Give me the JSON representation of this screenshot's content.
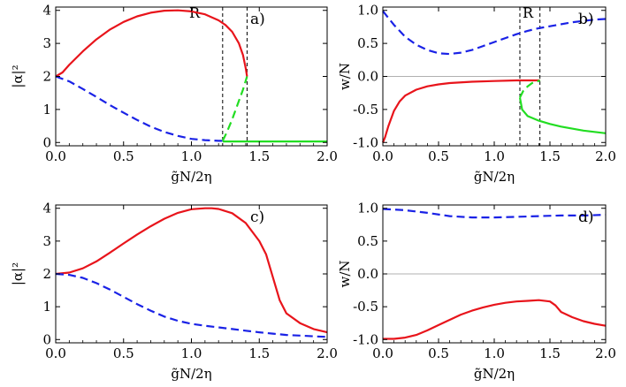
{
  "chart_data": [
    {
      "type": "line",
      "panel_label": "a)",
      "xlabel": "g̃N/2η",
      "ylabel": "|α|²",
      "xlim": [
        0,
        2
      ],
      "ylim": [
        -0.1,
        4.1
      ],
      "xticks": [
        "0.0",
        "0.5",
        "1.0",
        "1.5",
        "2.0"
      ],
      "yticks": [
        "0",
        "1",
        "2",
        "3",
        "4"
      ],
      "zero_line": false,
      "region": {
        "label": "R",
        "x_start": 1.23,
        "x_end": 1.41
      },
      "series": [
        {
          "name": "upper branch (red)",
          "color": "#e8141b",
          "dash": "solid",
          "x": [
            0.0,
            0.05,
            0.1,
            0.2,
            0.3,
            0.4,
            0.5,
            0.6,
            0.7,
            0.8,
            0.9,
            1.0,
            1.1,
            1.2,
            1.25,
            1.3,
            1.35,
            1.38,
            1.4,
            1.41
          ],
          "y": [
            2.0,
            2.12,
            2.35,
            2.76,
            3.12,
            3.42,
            3.65,
            3.82,
            3.93,
            3.99,
            4.0,
            3.97,
            3.88,
            3.7,
            3.56,
            3.35,
            3.0,
            2.65,
            2.25,
            2.0
          ]
        },
        {
          "name": "lower branch (blue)",
          "color": "#1a22e6",
          "dash": "dashed",
          "x": [
            0.0,
            0.1,
            0.2,
            0.3,
            0.4,
            0.5,
            0.6,
            0.7,
            0.8,
            0.9,
            1.0,
            1.1,
            1.2,
            1.23
          ],
          "y": [
            2.0,
            1.85,
            1.62,
            1.38,
            1.13,
            0.9,
            0.68,
            0.48,
            0.32,
            0.2,
            0.11,
            0.07,
            0.05,
            0.05
          ]
        },
        {
          "name": "unstable branch (green)",
          "color": "#22dd22",
          "dash": "dashed",
          "x": [
            1.23,
            1.26,
            1.3,
            1.34,
            1.38,
            1.41
          ],
          "y": [
            0.05,
            0.3,
            0.7,
            1.15,
            1.6,
            2.0
          ]
        },
        {
          "name": "trivial branch (green)",
          "color": "#22dd22",
          "dash": "solid",
          "x": [
            1.23,
            1.5,
            1.75,
            2.0
          ],
          "y": [
            0.03,
            0.03,
            0.03,
            0.03
          ]
        }
      ]
    },
    {
      "type": "line",
      "panel_label": "b)",
      "xlabel": "g̃N/2η",
      "ylabel": "w/N",
      "xlim": [
        0,
        2
      ],
      "ylim": [
        -1.05,
        1.05
      ],
      "xticks": [
        "0.0",
        "0.5",
        "1.0",
        "1.5",
        "2.0"
      ],
      "yticks": [
        "-1.0",
        "-0.5",
        "0.0",
        "0.5",
        "1.0"
      ],
      "zero_line": true,
      "region": {
        "label": "R",
        "x_start": 1.23,
        "x_end": 1.41
      },
      "series": [
        {
          "name": "blue dashed",
          "color": "#1a22e6",
          "dash": "dashed",
          "x": [
            0.0,
            0.1,
            0.2,
            0.3,
            0.4,
            0.5,
            0.6,
            0.7,
            0.8,
            0.9,
            1.0,
            1.1,
            1.2,
            1.3,
            1.4,
            1.5,
            1.6,
            1.7,
            1.8,
            1.9,
            2.0
          ],
          "y": [
            0.99,
            0.78,
            0.6,
            0.48,
            0.4,
            0.35,
            0.34,
            0.36,
            0.4,
            0.46,
            0.52,
            0.58,
            0.64,
            0.69,
            0.73,
            0.76,
            0.79,
            0.82,
            0.84,
            0.86,
            0.87
          ]
        },
        {
          "name": "red solid",
          "color": "#e8141b",
          "dash": "solid",
          "x": [
            0.0,
            0.02,
            0.05,
            0.1,
            0.15,
            0.2,
            0.3,
            0.4,
            0.5,
            0.6,
            0.8,
            1.0,
            1.2,
            1.41
          ],
          "y": [
            -1.0,
            -0.92,
            -0.75,
            -0.52,
            -0.38,
            -0.29,
            -0.2,
            -0.15,
            -0.12,
            -0.1,
            -0.08,
            -0.07,
            -0.06,
            -0.06
          ]
        },
        {
          "name": "green dashed",
          "color": "#22dd22",
          "dash": "dashed",
          "x": [
            1.23,
            1.26,
            1.3,
            1.34,
            1.38,
            1.41
          ],
          "y": [
            -0.32,
            -0.22,
            -0.15,
            -0.1,
            -0.08,
            -0.06
          ]
        },
        {
          "name": "green solid",
          "color": "#22dd22",
          "dash": "solid",
          "x": [
            1.23,
            1.25,
            1.3,
            1.4,
            1.5,
            1.6,
            1.7,
            1.8,
            1.9,
            2.0
          ],
          "y": [
            -0.32,
            -0.5,
            -0.6,
            -0.67,
            -0.72,
            -0.76,
            -0.79,
            -0.82,
            -0.84,
            -0.86
          ]
        }
      ]
    },
    {
      "type": "line",
      "panel_label": "c)",
      "xlabel": "g̃N/2η",
      "ylabel": "|α|²",
      "xlim": [
        0,
        2
      ],
      "ylim": [
        -0.1,
        4.1
      ],
      "xticks": [
        "0.0",
        "0.5",
        "1.0",
        "1.5",
        "2.0"
      ],
      "yticks": [
        "0",
        "1",
        "2",
        "3",
        "4"
      ],
      "zero_line": false,
      "series": [
        {
          "name": "red solid",
          "color": "#e8141b",
          "dash": "solid",
          "x": [
            0.0,
            0.1,
            0.2,
            0.3,
            0.4,
            0.5,
            0.6,
            0.7,
            0.8,
            0.9,
            1.0,
            1.1,
            1.15,
            1.2,
            1.3,
            1.4,
            1.5,
            1.55,
            1.6,
            1.65,
            1.7,
            1.8,
            1.9,
            2.0
          ],
          "y": [
            2.0,
            2.04,
            2.17,
            2.38,
            2.65,
            2.93,
            3.2,
            3.45,
            3.68,
            3.86,
            3.97,
            4.0,
            4.0,
            3.98,
            3.85,
            3.55,
            3.0,
            2.6,
            1.9,
            1.2,
            0.8,
            0.5,
            0.32,
            0.22
          ]
        },
        {
          "name": "blue dashed",
          "color": "#1a22e6",
          "dash": "dashed",
          "x": [
            0.0,
            0.1,
            0.2,
            0.3,
            0.4,
            0.5,
            0.6,
            0.7,
            0.8,
            0.9,
            1.0,
            1.1,
            1.2,
            1.3,
            1.4,
            1.5,
            1.6,
            1.7,
            1.8,
            1.9,
            2.0
          ],
          "y": [
            2.0,
            1.97,
            1.88,
            1.72,
            1.52,
            1.3,
            1.08,
            0.88,
            0.7,
            0.57,
            0.48,
            0.42,
            0.37,
            0.32,
            0.27,
            0.22,
            0.18,
            0.14,
            0.12,
            0.1,
            0.08
          ]
        }
      ]
    },
    {
      "type": "line",
      "panel_label": "d)",
      "xlabel": "g̃N/2η",
      "ylabel": "w/N",
      "xlim": [
        0,
        2
      ],
      "ylim": [
        -1.05,
        1.05
      ],
      "xticks": [
        "0.0",
        "0.5",
        "1.0",
        "1.5",
        "2.0"
      ],
      "yticks": [
        "-1.0",
        "-0.5",
        "0.0",
        "0.5",
        "1.0"
      ],
      "zero_line": true,
      "series": [
        {
          "name": "blue dashed",
          "color": "#1a22e6",
          "dash": "dashed",
          "x": [
            0.0,
            0.2,
            0.4,
            0.6,
            0.8,
            1.0,
            1.2,
            1.4,
            1.6,
            1.8,
            2.0
          ],
          "y": [
            0.99,
            0.97,
            0.93,
            0.88,
            0.86,
            0.86,
            0.87,
            0.88,
            0.89,
            0.89,
            0.9
          ]
        },
        {
          "name": "red solid",
          "color": "#e8141b",
          "dash": "solid",
          "x": [
            0.0,
            0.1,
            0.2,
            0.3,
            0.4,
            0.5,
            0.6,
            0.7,
            0.8,
            0.9,
            1.0,
            1.1,
            1.2,
            1.3,
            1.4,
            1.5,
            1.55,
            1.6,
            1.7,
            1.8,
            1.9,
            2.0
          ],
          "y": [
            -0.99,
            -0.99,
            -0.97,
            -0.93,
            -0.86,
            -0.78,
            -0.7,
            -0.62,
            -0.56,
            -0.51,
            -0.47,
            -0.44,
            -0.42,
            -0.41,
            -0.4,
            -0.42,
            -0.48,
            -0.58,
            -0.66,
            -0.72,
            -0.76,
            -0.79
          ]
        }
      ]
    }
  ]
}
